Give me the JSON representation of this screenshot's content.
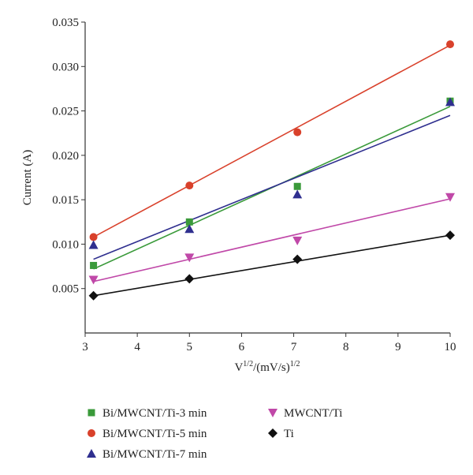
{
  "chart_data": {
    "type": "scatter",
    "title": "",
    "xlabel_base": "V",
    "xlabel_sup1": "1/2",
    "xlabel_mid": "/(mV/s)",
    "xlabel_sup2": "1/2",
    "ylabel": "Current (A)",
    "xlim": [
      3,
      10
    ],
    "ylim": [
      0,
      0.035
    ],
    "x_ticks": [
      "3",
      "4",
      "5",
      "6",
      "7",
      "8",
      "9",
      "10"
    ],
    "y_ticks": [
      "0.005",
      "0.010",
      "0.015",
      "0.020",
      "0.025",
      "0.030",
      "0.035"
    ],
    "x": [
      3.16,
      5.0,
      7.07,
      10.0
    ],
    "grid": false,
    "legend_position": "bottom",
    "series": [
      {
        "name": "Bi/MWCNT/Ti-3 min",
        "marker": "square",
        "color": "#3a9a3a",
        "values": [
          0.0076,
          0.0125,
          0.0165,
          0.0261
        ],
        "fit": [
          0.0072,
          0.0255
        ]
      },
      {
        "name": "Bi/MWCNT/Ti-5 min",
        "marker": "circle",
        "color": "#d9412b",
        "values": [
          0.0108,
          0.0166,
          0.0226,
          0.0325
        ],
        "fit": [
          0.0108,
          0.0324
        ]
      },
      {
        "name": "Bi/MWCNT/Ti-7 min",
        "marker": "triangle-up",
        "color": "#2f2f8f",
        "values": [
          0.0099,
          0.0117,
          0.0156,
          0.026
        ],
        "fit": [
          0.0083,
          0.0245
        ]
      },
      {
        "name": "MWCNT/Ti",
        "marker": "triangle-down",
        "color": "#c048a8",
        "values": [
          0.006,
          0.0085,
          0.0104,
          0.0153
        ],
        "fit": [
          0.0058,
          0.0151
        ]
      },
      {
        "name": "Ti",
        "marker": "diamond",
        "color": "#111111",
        "values": [
          0.0042,
          0.0061,
          0.0083,
          0.011
        ],
        "fit": [
          0.0042,
          0.011
        ]
      }
    ]
  }
}
